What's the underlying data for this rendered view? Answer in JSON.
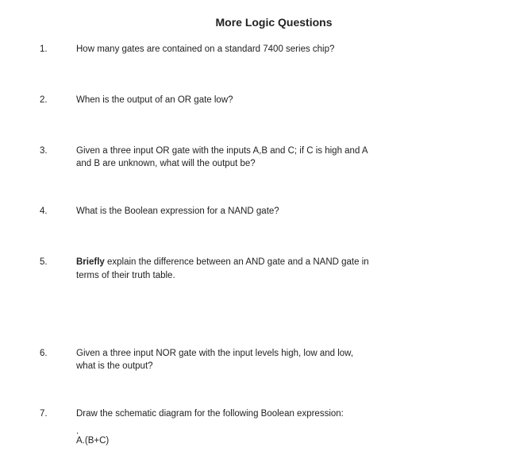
{
  "title": "More Logic Questions",
  "questions": [
    {
      "num": "1.",
      "text": "How many gates are contained on a standard 7400 series chip?"
    },
    {
      "num": "2.",
      "text": "When is the output of an OR gate low?"
    },
    {
      "num": "3.",
      "text": "Given a three input OR gate with the inputs A,B and C; if C is high and A and B are unknown, what will the output be?"
    },
    {
      "num": "4.",
      "text": "What is the Boolean expression for a NAND gate?"
    },
    {
      "num": "5.",
      "text_prefix": "Briefly",
      "text_rest": " explain the difference between an AND gate and a NAND gate in terms of their truth table."
    },
    {
      "num": "6.",
      "text": "Given a three input NOR gate with the input levels high, low and low, what is the output?"
    },
    {
      "num": "7.",
      "text": "Draw the schematic diagram for the following Boolean expression:",
      "sub_dot": ".",
      "sub": "A.(B+C)"
    }
  ],
  "colors": {
    "background": "#ffffff",
    "text": "#222222"
  },
  "typography": {
    "title_fontsize": 14,
    "body_fontsize": 11.5,
    "title_weight": "bold",
    "font_family": "Arial, Helvetica, sans-serif"
  }
}
